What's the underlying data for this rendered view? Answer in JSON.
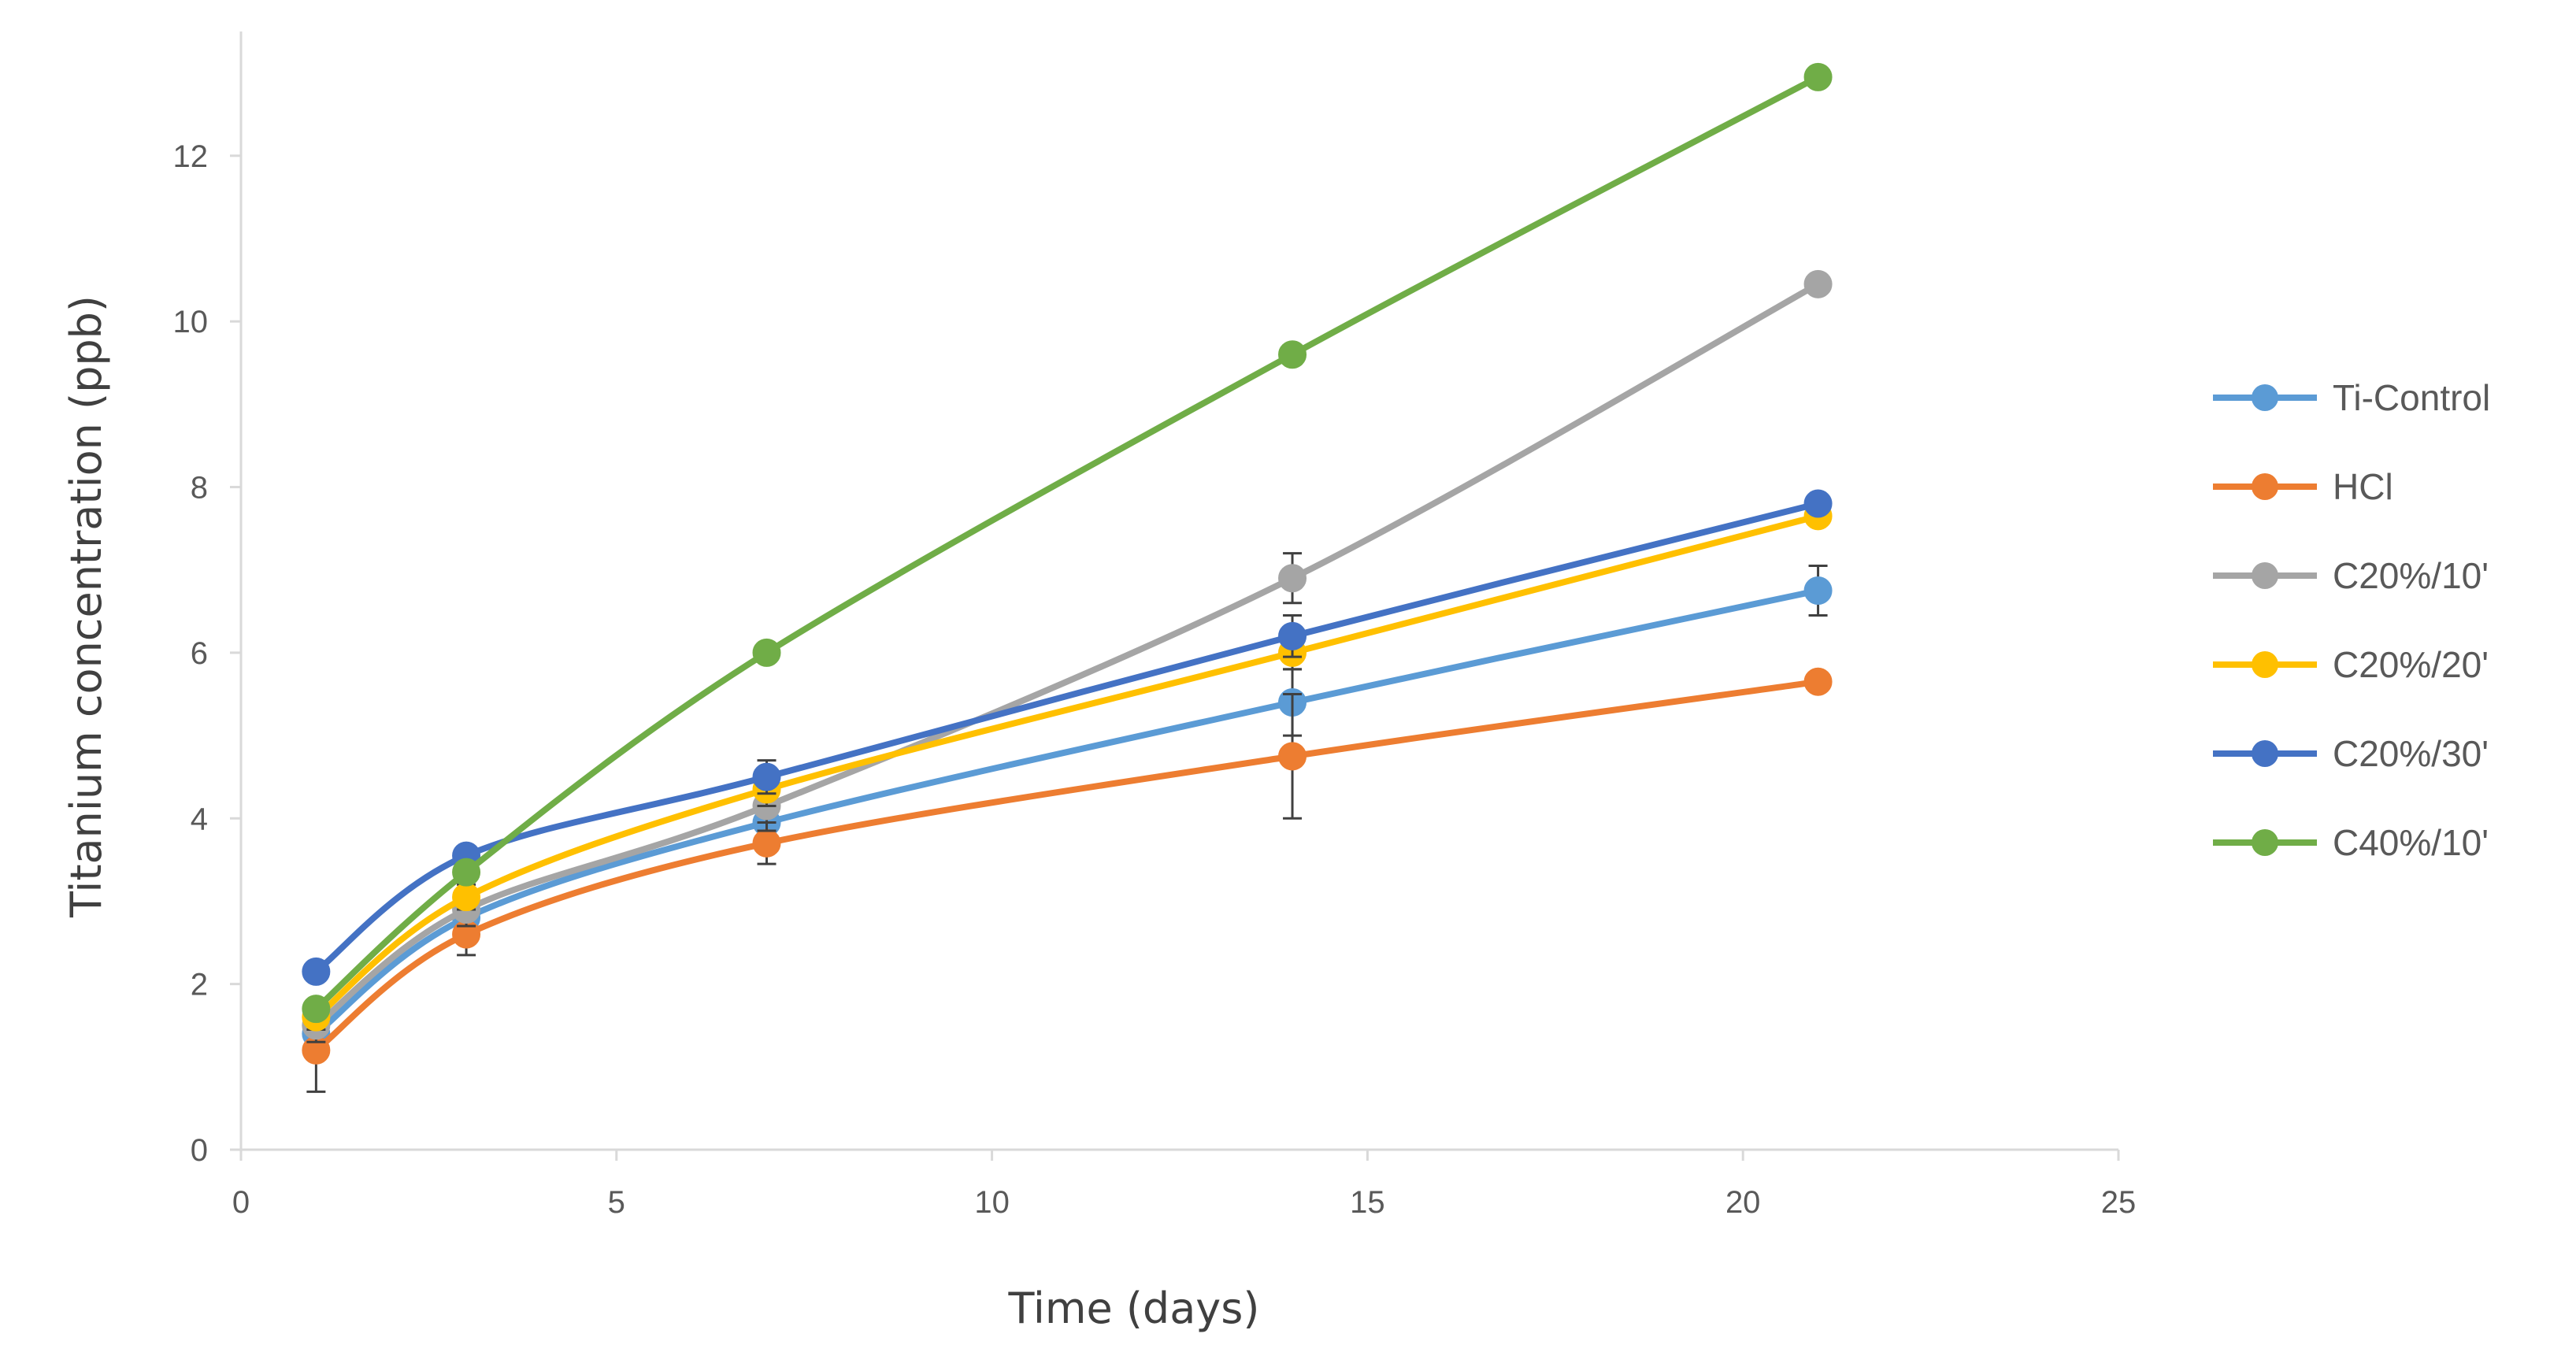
{
  "chart_data": {
    "type": "line",
    "title": "",
    "xlabel": "Time (days)",
    "ylabel": "Titanium concentration (ppb)",
    "xlim": [
      0,
      25
    ],
    "ylim": [
      0,
      13.5
    ],
    "x_ticks": [
      0,
      5,
      10,
      15,
      20,
      25
    ],
    "y_ticks": [
      0,
      2,
      4,
      6,
      8,
      10,
      12
    ],
    "x_tick_labels": [
      "0",
      "5",
      "10",
      "15",
      "20",
      "25"
    ],
    "y_tick_labels": [
      "0",
      "2",
      "4",
      "6",
      "8",
      "10",
      "12"
    ],
    "grid": false,
    "legend_position": "right",
    "x": [
      1,
      3,
      7,
      14,
      21
    ],
    "series": [
      {
        "name": "Ti-Control",
        "color": "#5B9BD5",
        "values": [
          1.4,
          2.8,
          3.95,
          5.4,
          6.75
        ],
        "errors": [
          0.2,
          0.2,
          0.2,
          0.4,
          0.3
        ]
      },
      {
        "name": "HCl",
        "color": "#ED7D31",
        "values": [
          1.2,
          2.6,
          3.7,
          4.75,
          5.65
        ],
        "errors": [
          0.5,
          0.25,
          0.25,
          0.75,
          0.1
        ]
      },
      {
        "name": "C20%/10'",
        "color": "#A5A5A5",
        "values": [
          1.5,
          2.9,
          4.15,
          6.9,
          10.45
        ],
        "errors": [
          0.2,
          0.2,
          0.3,
          0.3,
          0.1
        ]
      },
      {
        "name": "C20%/20'",
        "color": "#FFC000",
        "values": [
          1.6,
          3.05,
          4.35,
          6.0,
          7.65
        ],
        "errors": [
          0.15,
          0.15,
          0.2,
          0.2,
          0.1
        ]
      },
      {
        "name": "C20%/30'",
        "color": "#4472C4",
        "values": [
          2.15,
          3.55,
          4.5,
          6.2,
          7.8
        ],
        "errors": [
          0.1,
          0.1,
          0.2,
          0.25,
          0.1
        ]
      },
      {
        "name": "C40%/10'",
        "color": "#70AD47",
        "values": [
          1.7,
          3.35,
          6.0,
          9.6,
          12.95
        ],
        "errors": [
          0.1,
          0.1,
          0.1,
          0.1,
          0.1
        ]
      }
    ]
  }
}
